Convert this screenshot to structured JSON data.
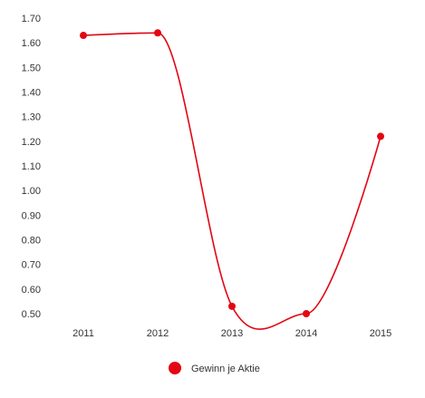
{
  "chart_data": {
    "type": "line",
    "title": "",
    "xlabel": "",
    "ylabel": "",
    "x": [
      "2011",
      "2012",
      "2013",
      "2014",
      "2015"
    ],
    "yticks": [
      "0.50",
      "0.60",
      "0.70",
      "0.80",
      "0.90",
      "1.00",
      "1.10",
      "1.20",
      "1.30",
      "1.40",
      "1.50",
      "1.60",
      "1.70"
    ],
    "ylim": [
      0.5,
      1.7
    ],
    "grid": false,
    "legend": "bottom-center",
    "series": [
      {
        "name": "Gewinn je Aktie",
        "color": "#e30613",
        "values": [
          1.63,
          1.64,
          0.53,
          0.5,
          1.22
        ]
      }
    ]
  }
}
